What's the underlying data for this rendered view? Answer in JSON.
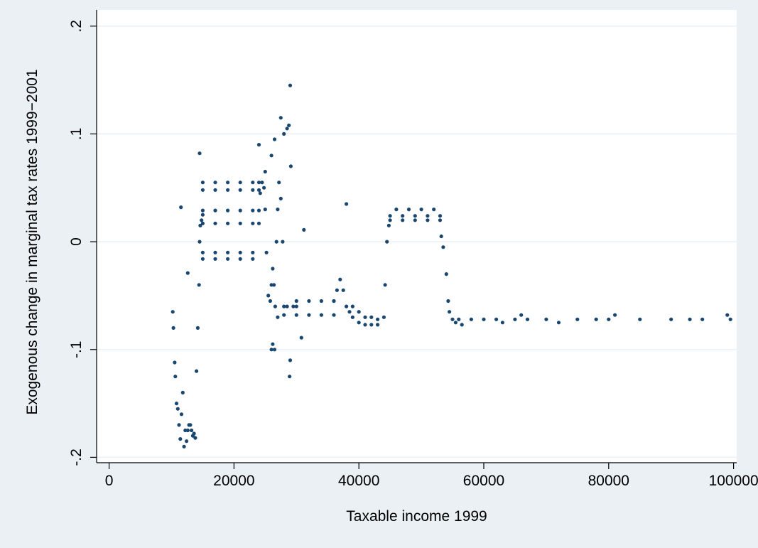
{
  "chart_data": {
    "type": "scatter",
    "title": "",
    "xlabel": "Taxable income 1999",
    "ylabel": "Exogenous change in marginal tax rates 1999−2001",
    "xlim": [
      -2000,
      100500
    ],
    "ylim": [
      -0.205,
      0.215
    ],
    "x_ticks": [
      0,
      20000,
      40000,
      60000,
      80000,
      100000
    ],
    "x_tick_labels": [
      "0",
      "20000",
      "40000",
      "60000",
      "80000",
      "100000"
    ],
    "y_ticks": [
      -0.2,
      -0.1,
      0,
      0.1,
      0.2
    ],
    "y_tick_labels": [
      "-.2",
      "-.1",
      "0",
      ".1",
      ".2"
    ],
    "grid": true,
    "legend": "none",
    "colors": {
      "marker": "#1a476f",
      "plot_background": "#ffffff",
      "outer_background": "#eaf0f4",
      "grid": "#eaf0f4",
      "axis": "#000000"
    },
    "series": [
      {
        "points": [
          [
            10200,
            -0.065
          ],
          [
            10300,
            -0.08
          ],
          [
            10500,
            -0.112
          ],
          [
            10600,
            -0.125
          ],
          [
            10800,
            -0.15
          ],
          [
            11000,
            -0.155
          ],
          [
            11200,
            -0.17
          ],
          [
            11400,
            -0.183
          ],
          [
            11600,
            -0.16
          ],
          [
            11800,
            -0.14
          ],
          [
            12000,
            -0.19
          ],
          [
            12200,
            -0.175
          ],
          [
            12400,
            -0.185
          ],
          [
            12600,
            -0.175
          ],
          [
            12800,
            -0.17
          ],
          [
            13000,
            -0.17
          ],
          [
            13200,
            -0.175
          ],
          [
            13400,
            -0.18
          ],
          [
            13600,
            -0.178
          ],
          [
            13800,
            -0.182
          ],
          [
            14000,
            -0.12
          ],
          [
            14200,
            -0.08
          ],
          [
            14400,
            -0.04
          ],
          [
            14500,
            0.0
          ],
          [
            14600,
            0.015
          ],
          [
            14800,
            0.02
          ],
          [
            15000,
            0.025
          ],
          [
            11500,
            0.032
          ],
          [
            14500,
            0.082
          ],
          [
            12600,
            -0.029
          ],
          [
            15000,
            0.055
          ],
          [
            17000,
            0.055
          ],
          [
            19000,
            0.055
          ],
          [
            21000,
            0.055
          ],
          [
            23000,
            0.055
          ],
          [
            24000,
            0.055
          ],
          [
            15000,
            0.048
          ],
          [
            17000,
            0.048
          ],
          [
            19000,
            0.048
          ],
          [
            21000,
            0.048
          ],
          [
            23000,
            0.048
          ],
          [
            24000,
            0.048
          ],
          [
            15000,
            0.029
          ],
          [
            17000,
            0.029
          ],
          [
            19000,
            0.029
          ],
          [
            21000,
            0.029
          ],
          [
            23000,
            0.029
          ],
          [
            24000,
            0.029
          ],
          [
            15000,
            0.017
          ],
          [
            17000,
            0.017
          ],
          [
            19000,
            0.017
          ],
          [
            21000,
            0.017
          ],
          [
            23000,
            0.017
          ],
          [
            24000,
            0.017
          ],
          [
            15000,
            -0.01
          ],
          [
            17000,
            -0.01
          ],
          [
            19000,
            -0.01
          ],
          [
            21000,
            -0.01
          ],
          [
            23000,
            -0.01
          ],
          [
            15000,
            -0.016
          ],
          [
            17000,
            -0.016
          ],
          [
            19000,
            -0.016
          ],
          [
            21000,
            -0.016
          ],
          [
            23000,
            -0.016
          ],
          [
            24200,
            0.045
          ],
          [
            24500,
            0.055
          ],
          [
            24800,
            0.05
          ],
          [
            25000,
            0.03
          ],
          [
            25200,
            -0.01
          ],
          [
            25500,
            -0.05
          ],
          [
            25800,
            -0.055
          ],
          [
            26000,
            -0.04
          ],
          [
            26200,
            -0.025
          ],
          [
            26400,
            -0.04
          ],
          [
            26600,
            -0.06
          ],
          [
            26800,
            0.0
          ],
          [
            27000,
            0.03
          ],
          [
            27200,
            0.055
          ],
          [
            27500,
            0.04
          ],
          [
            27800,
            0.0
          ],
          [
            28000,
            -0.06
          ],
          [
            28500,
            -0.06
          ],
          [
            24000,
            0.09
          ],
          [
            25000,
            0.065
          ],
          [
            26000,
            0.08
          ],
          [
            26500,
            0.095
          ],
          [
            27500,
            0.115
          ],
          [
            28000,
            0.1
          ],
          [
            28500,
            0.105
          ],
          [
            28800,
            0.108
          ],
          [
            29000,
            0.145
          ],
          [
            29100,
            0.07
          ],
          [
            29000,
            -0.11
          ],
          [
            28900,
            -0.125
          ],
          [
            26000,
            -0.1
          ],
          [
            26200,
            -0.095
          ],
          [
            26500,
            -0.1
          ],
          [
            27000,
            -0.07
          ],
          [
            29500,
            -0.06
          ],
          [
            30000,
            -0.06
          ],
          [
            30000,
            -0.055
          ],
          [
            32000,
            -0.055
          ],
          [
            34000,
            -0.055
          ],
          [
            36000,
            -0.055
          ],
          [
            28000,
            -0.068
          ],
          [
            30000,
            -0.068
          ],
          [
            32000,
            -0.068
          ],
          [
            34000,
            -0.068
          ],
          [
            36000,
            -0.068
          ],
          [
            31200,
            0.011
          ],
          [
            30800,
            -0.089
          ],
          [
            36000,
            -0.055
          ],
          [
            36500,
            -0.045
          ],
          [
            37000,
            -0.035
          ],
          [
            37500,
            -0.045
          ],
          [
            38000,
            -0.06
          ],
          [
            38500,
            -0.065
          ],
          [
            39000,
            -0.06
          ],
          [
            40000,
            -0.065
          ],
          [
            41000,
            -0.07
          ],
          [
            42000,
            -0.07
          ],
          [
            43000,
            -0.072
          ],
          [
            44000,
            -0.07
          ],
          [
            38000,
            0.035
          ],
          [
            39000,
            -0.07
          ],
          [
            40000,
            -0.075
          ],
          [
            41000,
            -0.077
          ],
          [
            42000,
            -0.077
          ],
          [
            43000,
            -0.077
          ],
          [
            44200,
            -0.04
          ],
          [
            44500,
            0.0
          ],
          [
            44800,
            0.015
          ],
          [
            45000,
            0.024
          ],
          [
            47000,
            0.024
          ],
          [
            49000,
            0.024
          ],
          [
            51000,
            0.024
          ],
          [
            53000,
            0.024
          ],
          [
            46000,
            0.03
          ],
          [
            48000,
            0.03
          ],
          [
            50000,
            0.03
          ],
          [
            52000,
            0.03
          ],
          [
            45000,
            0.02
          ],
          [
            47000,
            0.02
          ],
          [
            49000,
            0.02
          ],
          [
            51000,
            0.02
          ],
          [
            53000,
            0.02
          ],
          [
            53200,
            0.005
          ],
          [
            53500,
            -0.005
          ],
          [
            54000,
            -0.03
          ],
          [
            54300,
            -0.055
          ],
          [
            54500,
            -0.065
          ],
          [
            55000,
            -0.072
          ],
          [
            55500,
            -0.075
          ],
          [
            56000,
            -0.072
          ],
          [
            56500,
            -0.077
          ],
          [
            58000,
            -0.072
          ],
          [
            60000,
            -0.072
          ],
          [
            62000,
            -0.072
          ],
          [
            63000,
            -0.075
          ],
          [
            65000,
            -0.072
          ],
          [
            66000,
            -0.068
          ],
          [
            67000,
            -0.072
          ],
          [
            70000,
            -0.072
          ],
          [
            72000,
            -0.075
          ],
          [
            75000,
            -0.072
          ],
          [
            78000,
            -0.072
          ],
          [
            80000,
            -0.072
          ],
          [
            81000,
            -0.068
          ],
          [
            85000,
            -0.072
          ],
          [
            90000,
            -0.072
          ],
          [
            93000,
            -0.072
          ],
          [
            95000,
            -0.072
          ],
          [
            99000,
            -0.068
          ],
          [
            99500,
            -0.072
          ]
        ]
      }
    ]
  }
}
